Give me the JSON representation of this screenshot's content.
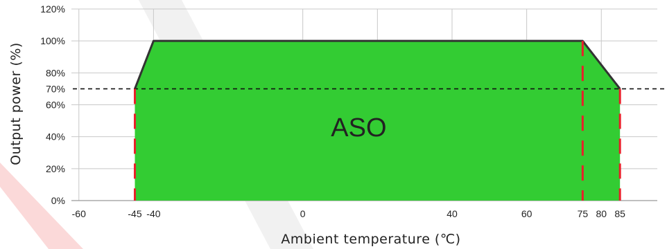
{
  "colors": {
    "area_fill": "#33cc33",
    "outline": "#333333",
    "grid": "#c8c8c8",
    "dashed_guides": "#e8202a",
    "reference_line": "#111111",
    "watermark": "#dcdcdc",
    "watermark_accent": "#f7b3b3"
  },
  "chart_data": {
    "type": "area",
    "title": "",
    "xlabel": "Ambient temperature (℃)",
    "ylabel": "Output power (%)",
    "xlim": [
      -62,
      95
    ],
    "ylim": [
      0,
      120
    ],
    "x_ticks": [
      -60,
      -45,
      -40,
      0,
      40,
      60,
      75,
      80,
      85
    ],
    "x_tick_labels": [
      "-60",
      "-45",
      "-40",
      "0",
      "40",
      "60",
      "75",
      "80",
      "85"
    ],
    "y_ticks": [
      0,
      20,
      40,
      60,
      70,
      80,
      100,
      120
    ],
    "y_tick_labels": [
      "0%",
      "20%",
      "40%",
      "60%",
      "70%",
      "80%",
      "100%",
      "120%"
    ],
    "x_grid": [
      -60,
      -40,
      0,
      20,
      40,
      60,
      80
    ],
    "y_grid": [
      20,
      40,
      60,
      80,
      100,
      120
    ],
    "grid": true,
    "series": [
      {
        "x": [
          -45,
          -40,
          75,
          85
        ],
        "y": [
          70,
          100,
          100,
          70
        ]
      }
    ],
    "reference_lines": [
      {
        "axis": "y",
        "value": 70,
        "style": "dashed"
      }
    ],
    "guide_lines": [
      {
        "axis": "x",
        "value": -45,
        "style": "dashed"
      },
      {
        "axis": "x",
        "value": 75,
        "style": "dashed"
      },
      {
        "axis": "x",
        "value": 85,
        "style": "dashed"
      }
    ],
    "annotations": [
      {
        "text": "ASO",
        "x": 15,
        "y": 46
      }
    ]
  }
}
